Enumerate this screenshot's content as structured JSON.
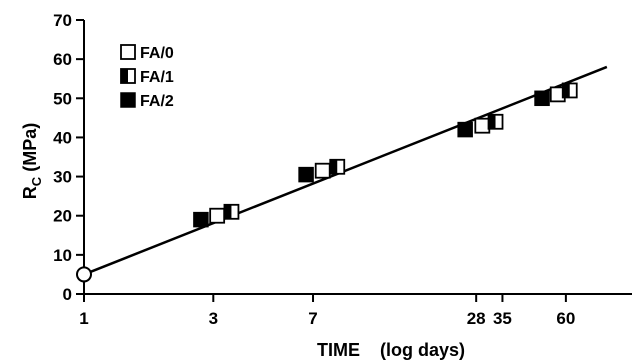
{
  "chart_data": {
    "type": "scatter",
    "xlabel": "TIME    (log days)",
    "ylabel_main": "R",
    "ylabel_sub": "C",
    "ylabel_tail": " (MPa)",
    "x_scale": "log",
    "x_ticks": [
      1,
      3,
      7,
      28,
      35,
      60
    ],
    "x_tick_labels": [
      "1",
      "3",
      "7",
      "28",
      "35",
      "60"
    ],
    "xlim": [
      1,
      100
    ],
    "y_ticks": [
      0,
      10,
      20,
      30,
      40,
      50,
      60,
      70
    ],
    "y_tick_labels": [
      "0",
      "10",
      "20",
      "30",
      "40",
      "50",
      "60",
      "70"
    ],
    "ylim": [
      0,
      70
    ],
    "grid": false,
    "legend_position": "top-left",
    "series": [
      {
        "name": "FA/0",
        "marker": "open-square",
        "points": [
          {
            "x": 3.1,
            "y": 20
          },
          {
            "x": 7.6,
            "y": 31.5
          },
          {
            "x": 29.5,
            "y": 43
          },
          {
            "x": 56,
            "y": 51
          }
        ]
      },
      {
        "name": "FA/1",
        "marker": "half-filled-square",
        "points": [
          {
            "x": 3.5,
            "y": 21
          },
          {
            "x": 8.6,
            "y": 32.5
          },
          {
            "x": 33,
            "y": 44
          },
          {
            "x": 62,
            "y": 52
          }
        ]
      },
      {
        "name": "FA/2",
        "marker": "filled-square",
        "points": [
          {
            "x": 2.7,
            "y": 19
          },
          {
            "x": 6.6,
            "y": 30.5
          },
          {
            "x": 25.5,
            "y": 42
          },
          {
            "x": 49,
            "y": 50
          }
        ]
      }
    ],
    "fit_line": {
      "x": [
        1,
        85
      ],
      "y": [
        5,
        58
      ]
    },
    "annotation_point": {
      "x": 1,
      "y": 5,
      "marker": "open-circle"
    },
    "colors": {
      "marker_fill": "#000000",
      "marker_open": "#ffffff",
      "line": "#000000"
    }
  }
}
